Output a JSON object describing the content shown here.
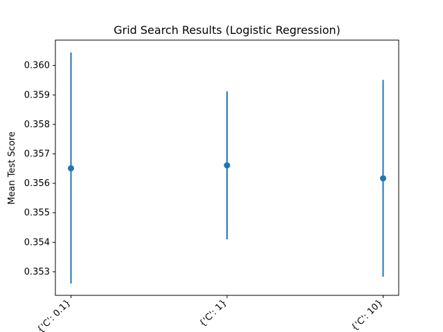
{
  "chart_data": {
    "type": "scatter",
    "title": "Grid Search Results (Logistic Regression)",
    "xlabel": "",
    "ylabel": "Mean Test Score",
    "categories": [
      "{'C': 0.1}",
      "{'C': 1}",
      "{'C': 10}"
    ],
    "series": [
      {
        "values": [
          0.35651,
          0.35661,
          0.35617
        ],
        "error_low": [
          0.3526,
          0.3541,
          0.35283
        ],
        "error_high": [
          0.36044,
          0.35912,
          0.35951
        ]
      }
    ],
    "ylim": [
      0.3522,
      0.36086
    ],
    "yticks": [
      0.353,
      0.354,
      0.355,
      0.356,
      0.357,
      0.358,
      0.359,
      0.36
    ],
    "ytick_labels": [
      "0.353",
      "0.354",
      "0.355",
      "0.356",
      "0.357",
      "0.358",
      "0.359",
      "0.360"
    ],
    "xtick_rotation_deg": 45,
    "grid": false,
    "legend": "none",
    "colors": {
      "series": "#1f77b4",
      "axes": "#000000",
      "background": "#ffffff"
    }
  }
}
